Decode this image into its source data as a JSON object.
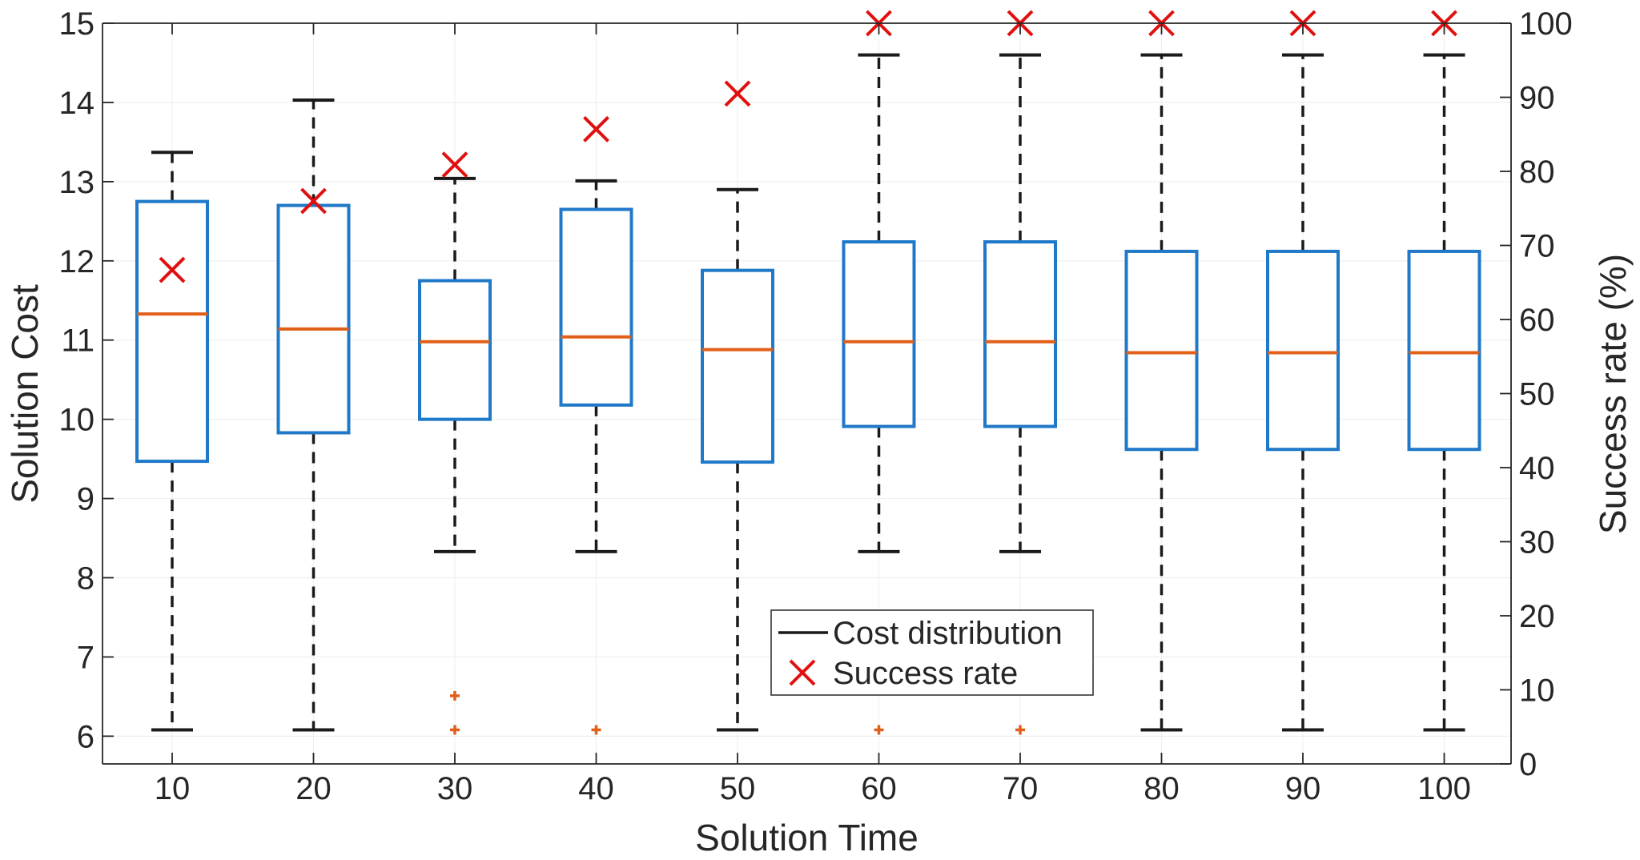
{
  "chart_data": {
    "type": "box",
    "xlabel": "Solution Time",
    "ylabel": "Solution Cost",
    "ylabel_right": "Success rate (%)",
    "categories": [
      "10",
      "20",
      "30",
      "40",
      "50",
      "60",
      "70",
      "80",
      "90",
      "100"
    ],
    "ylim": [
      5.65,
      15
    ],
    "ylim_right": [
      0,
      100
    ],
    "yticks": [
      "6",
      "7",
      "8",
      "9",
      "10",
      "11",
      "12",
      "13",
      "14",
      "15"
    ],
    "yticks_right": [
      "0",
      "10",
      "20",
      "30",
      "40",
      "50",
      "60",
      "70",
      "80",
      "90",
      "100"
    ],
    "series": [
      {
        "name": "Cost distribution",
        "boxes": [
          {
            "whisker_low": 6.08,
            "q1": 9.47,
            "median": 11.33,
            "q3": 12.75,
            "whisker_high": 13.37,
            "outliers": []
          },
          {
            "whisker_low": 6.08,
            "q1": 9.83,
            "median": 11.14,
            "q3": 12.7,
            "whisker_high": 14.03,
            "outliers": []
          },
          {
            "whisker_low": 8.33,
            "q1": 10.0,
            "median": 10.98,
            "q3": 11.75,
            "whisker_high": 13.04,
            "outliers": [
              6.51,
              6.08
            ]
          },
          {
            "whisker_low": 8.33,
            "q1": 10.18,
            "median": 11.04,
            "q3": 12.65,
            "whisker_high": 13.01,
            "outliers": [
              6.08
            ]
          },
          {
            "whisker_low": 6.08,
            "q1": 9.46,
            "median": 10.88,
            "q3": 11.88,
            "whisker_high": 12.9,
            "outliers": []
          },
          {
            "whisker_low": 8.33,
            "q1": 9.91,
            "median": 10.98,
            "q3": 12.24,
            "whisker_high": 14.6,
            "outliers": [
              6.08
            ]
          },
          {
            "whisker_low": 8.33,
            "q1": 9.91,
            "median": 10.98,
            "q3": 12.24,
            "whisker_high": 14.6,
            "outliers": [
              6.08
            ]
          },
          {
            "whisker_low": 6.08,
            "q1": 9.62,
            "median": 10.84,
            "q3": 12.12,
            "whisker_high": 14.6,
            "outliers": []
          },
          {
            "whisker_low": 6.08,
            "q1": 9.62,
            "median": 10.84,
            "q3": 12.12,
            "whisker_high": 14.6,
            "outliers": []
          },
          {
            "whisker_low": 6.08,
            "q1": 9.62,
            "median": 10.84,
            "q3": 12.12,
            "whisker_high": 14.6,
            "outliers": []
          }
        ]
      },
      {
        "name": "Success rate",
        "axis": "right",
        "values": [
          66.7,
          76.0,
          80.9,
          85.7,
          90.5,
          100,
          100,
          100,
          100,
          100
        ]
      }
    ],
    "legend": {
      "position": "bottom-center",
      "items": [
        "Cost distribution",
        "Success rate"
      ]
    },
    "colors": {
      "box": "#1f78c8",
      "median": "#e0601a",
      "whisker": "#1a1a1a",
      "outlier": "#e0601a",
      "success_marker": "#e01010",
      "axis": "#262626",
      "grid": "#efefef"
    }
  }
}
